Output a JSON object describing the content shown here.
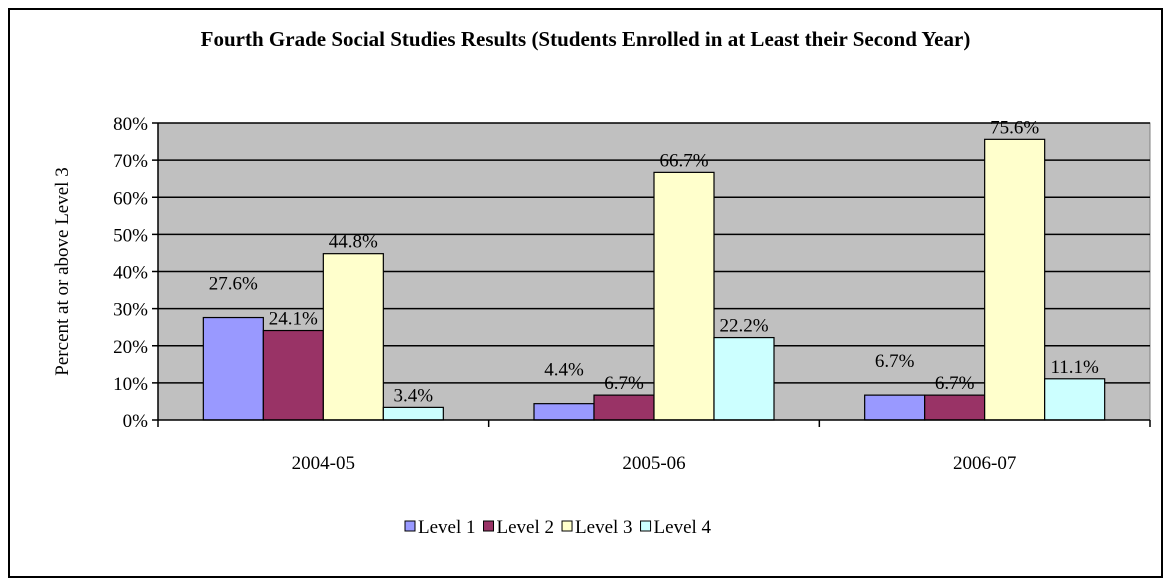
{
  "chart_data": {
    "type": "bar",
    "title": "Fourth Grade Social Studies Results (Students Enrolled in at Least their Second Year)",
    "ylabel": "Percent at or above Level 3",
    "xlabel": "",
    "categories": [
      "2004-05",
      "2005-06",
      "2006-07"
    ],
    "ylim": [
      0,
      80
    ],
    "yticks": [
      "0%",
      "10%",
      "20%",
      "30%",
      "40%",
      "50%",
      "60%",
      "70%",
      "80%"
    ],
    "grid": true,
    "legend_position": "bottom",
    "plot_background": "#c0c0c0",
    "series": [
      {
        "name": "Level 1",
        "color": "#9999ff",
        "values": [
          27.6,
          4.4,
          6.7
        ],
        "labels": [
          "27.6%",
          "4.4%",
          "6.7%"
        ]
      },
      {
        "name": "Level 2",
        "color": "#993366",
        "values": [
          24.1,
          6.7,
          6.7
        ],
        "labels": [
          "24.1%",
          "6.7%",
          "6.7%"
        ]
      },
      {
        "name": "Level 3",
        "color": "#ffffcc",
        "values": [
          44.8,
          66.7,
          75.6
        ],
        "labels": [
          "44.8%",
          "66.7%",
          "75.6%"
        ]
      },
      {
        "name": "Level 4",
        "color": "#ccffff",
        "values": [
          3.4,
          22.2,
          11.1
        ],
        "labels": [
          "3.4%",
          "22.2%",
          "11.1%"
        ]
      }
    ]
  }
}
